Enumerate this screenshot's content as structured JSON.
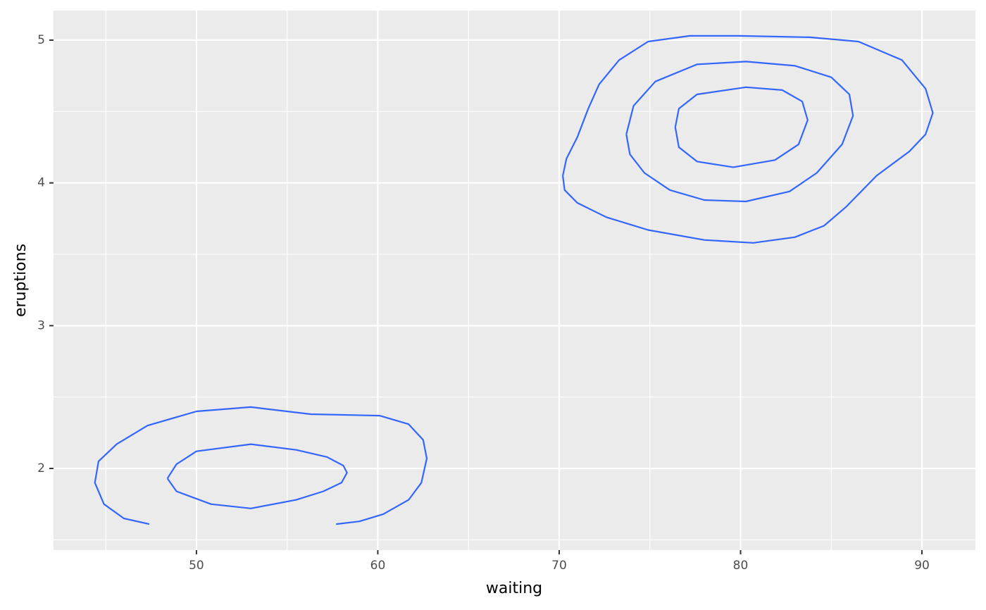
{
  "chart_data": {
    "type": "contour",
    "x_label": "waiting",
    "y_label": "eruptions",
    "xlim": [
      42.12,
      92.95
    ],
    "ylim": [
      1.428,
      5.207
    ],
    "xticks": [
      50,
      60,
      70,
      80,
      90
    ],
    "yticks": [
      2,
      3,
      4,
      5
    ],
    "xminor": [
      45,
      55,
      65,
      75,
      85
    ],
    "yminor": [
      1.5,
      2.5,
      3.5,
      4.5
    ],
    "grid": true,
    "series": [
      {
        "color": "#3366FF",
        "x": [
          70.2,
          70.4,
          71.0,
          71.6,
          72.2,
          73.3,
          74.9,
          77.2,
          79.9,
          83.8,
          86.5,
          88.9,
          90.2,
          90.6,
          90.2,
          89.3,
          87.5,
          85.8,
          84.6,
          83.0,
          80.7,
          78.0,
          74.9,
          72.6,
          71.0,
          70.3,
          70.2
        ],
        "values": [
          4.05,
          4.17,
          4.32,
          4.52,
          4.69,
          4.86,
          4.99,
          5.03,
          5.03,
          5.02,
          4.99,
          4.86,
          4.66,
          4.49,
          4.34,
          4.22,
          4.05,
          3.83,
          3.7,
          3.62,
          3.58,
          3.6,
          3.67,
          3.76,
          3.86,
          3.95,
          4.05
        ]
      },
      {
        "color": "#3366FF",
        "x": [
          73.7,
          74.1,
          75.3,
          77.6,
          80.3,
          83.0,
          85.0,
          86.0,
          86.2,
          85.6,
          84.2,
          82.7,
          80.3,
          78.0,
          76.1,
          74.7,
          73.9,
          73.7
        ],
        "values": [
          4.34,
          4.54,
          4.71,
          4.83,
          4.85,
          4.82,
          4.74,
          4.62,
          4.47,
          4.27,
          4.07,
          3.94,
          3.87,
          3.88,
          3.95,
          4.07,
          4.2,
          4.34
        ]
      },
      {
        "color": "#3366FF",
        "x": [
          76.4,
          76.6,
          77.6,
          80.3,
          82.3,
          83.4,
          83.7,
          83.2,
          81.9,
          79.6,
          77.6,
          76.6,
          76.4
        ],
        "values": [
          4.39,
          4.52,
          4.62,
          4.67,
          4.65,
          4.57,
          4.44,
          4.27,
          4.16,
          4.11,
          4.15,
          4.25,
          4.39
        ]
      },
      {
        "color": "#3366FF",
        "x": [
          47.4,
          46.0,
          44.9,
          44.4,
          44.6,
          45.6,
          47.3,
          50.0,
          53.0,
          56.3,
          60.1,
          61.7,
          62.5,
          62.7,
          62.4,
          61.7,
          60.3,
          59.0,
          57.7
        ],
        "values": [
          1.61,
          1.65,
          1.75,
          1.9,
          2.05,
          2.17,
          2.3,
          2.4,
          2.43,
          2.38,
          2.37,
          2.31,
          2.2,
          2.07,
          1.9,
          1.78,
          1.68,
          1.63,
          1.61
        ]
      },
      {
        "color": "#3366FF",
        "x": [
          48.4,
          48.9,
          50.0,
          53.0,
          55.5,
          57.2,
          58.1,
          58.3,
          58.0,
          57.0,
          55.5,
          53.0,
          50.8,
          48.9,
          48.4
        ],
        "values": [
          1.93,
          2.03,
          2.12,
          2.17,
          2.13,
          2.08,
          2.02,
          1.97,
          1.9,
          1.84,
          1.78,
          1.72,
          1.75,
          1.84,
          1.93
        ]
      }
    ]
  }
}
